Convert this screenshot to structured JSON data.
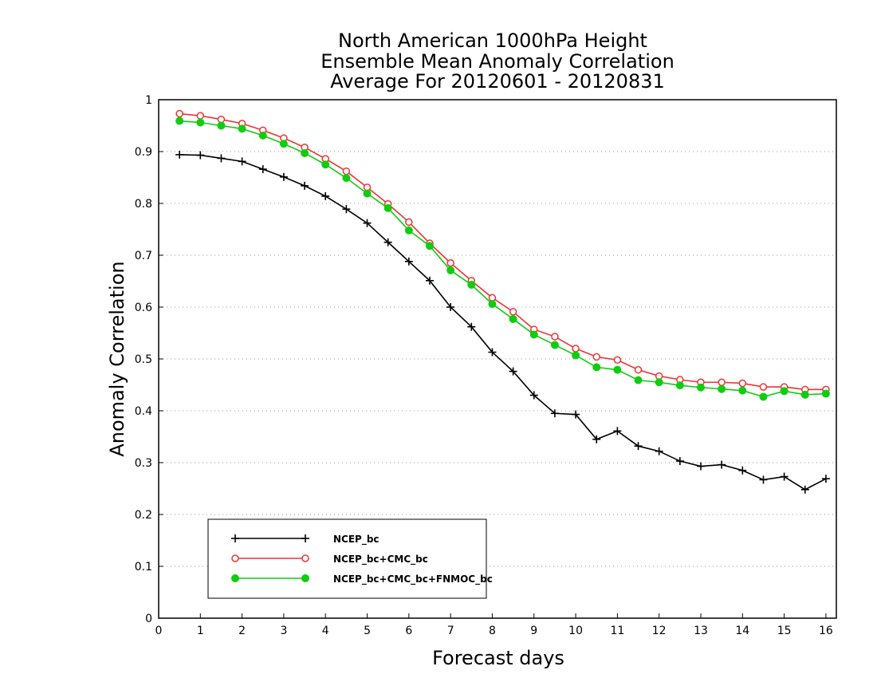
{
  "chart_data": {
    "type": "line",
    "title_lines": [
      "North American 1000hPa Height",
      "Ensemble Mean Anomaly Correlation",
      "Average For 20120601 - 20120831"
    ],
    "xlabel": "Forecast days",
    "ylabel": "Anomaly Correlation",
    "xlim": [
      0,
      16.25
    ],
    "ylim": [
      0,
      1
    ],
    "xticks": [
      0,
      1,
      2,
      3,
      4,
      5,
      6,
      7,
      8,
      9,
      10,
      11,
      12,
      13,
      14,
      15,
      16
    ],
    "yticks": [
      0,
      0.1,
      0.2,
      0.3,
      0.4,
      0.5,
      0.6,
      0.7,
      0.8,
      0.9,
      1
    ],
    "ytick_labels": [
      "0",
      "0.1",
      "0.2",
      "0.3",
      "0.4",
      "0.5",
      "0.6",
      "0.7",
      "0.8",
      "0.9",
      "1"
    ],
    "grid": "horizontal dotted",
    "legend_position": "lower-left",
    "x": [
      0.5,
      1,
      1.5,
      2,
      2.5,
      3,
      3.5,
      4,
      4.5,
      5,
      5.5,
      6,
      6.5,
      7,
      7.5,
      8,
      8.5,
      9,
      9.5,
      10,
      10.5,
      11,
      11.5,
      12,
      12.5,
      13,
      13.5,
      14,
      14.5,
      15,
      15.5,
      16
    ],
    "series": [
      {
        "name": "NCEP_bc",
        "color": "#000000",
        "marker": "plus",
        "values": [
          0.894,
          0.893,
          0.887,
          0.881,
          0.866,
          0.851,
          0.834,
          0.814,
          0.789,
          0.762,
          0.725,
          0.688,
          0.651,
          0.6,
          0.562,
          0.513,
          0.476,
          0.43,
          0.395,
          0.393,
          0.345,
          0.361,
          0.332,
          0.322,
          0.303,
          0.293,
          0.296,
          0.285,
          0.267,
          0.273,
          0.248,
          0.269
        ]
      },
      {
        "name": "NCEP_bc+CMC_bc",
        "color": "#ee3333",
        "marker": "open-circle",
        "values": [
          0.973,
          0.969,
          0.962,
          0.954,
          0.941,
          0.926,
          0.908,
          0.886,
          0.862,
          0.831,
          0.799,
          0.764,
          0.723,
          0.685,
          0.651,
          0.618,
          0.591,
          0.557,
          0.543,
          0.52,
          0.504,
          0.498,
          0.479,
          0.467,
          0.46,
          0.455,
          0.455,
          0.453,
          0.446,
          0.446,
          0.441,
          0.441
        ]
      },
      {
        "name": "NCEP_bc+CMC_bc+FNMOC_bc",
        "color": "#11cc11",
        "marker": "filled-circle",
        "values": [
          0.959,
          0.956,
          0.95,
          0.944,
          0.931,
          0.915,
          0.897,
          0.875,
          0.849,
          0.819,
          0.791,
          0.748,
          0.718,
          0.671,
          0.643,
          0.606,
          0.577,
          0.547,
          0.527,
          0.507,
          0.484,
          0.479,
          0.459,
          0.455,
          0.449,
          0.445,
          0.442,
          0.439,
          0.427,
          0.438,
          0.431,
          0.433
        ]
      }
    ]
  }
}
